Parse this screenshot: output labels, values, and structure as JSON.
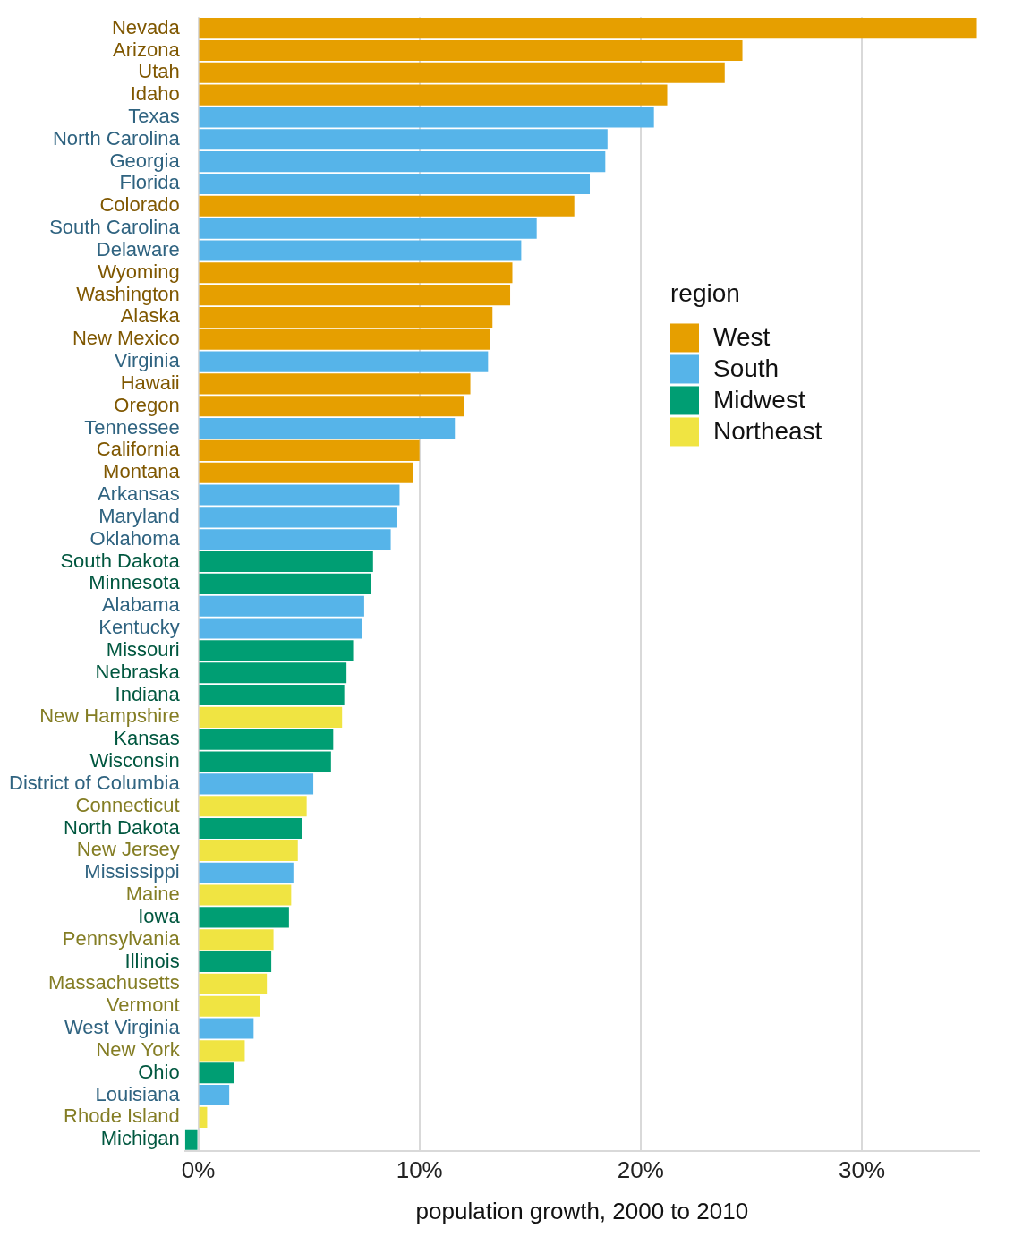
{
  "chart_data": {
    "type": "bar",
    "orientation": "horizontal",
    "x_label": "population growth, 2000 to 2010",
    "legend_title": "region",
    "legend": "right",
    "grid": true,
    "categories": [
      "Nevada",
      "Arizona",
      "Utah",
      "Idaho",
      "Texas",
      "North Carolina",
      "Georgia",
      "Florida",
      "Colorado",
      "South Carolina",
      "Delaware",
      "Wyoming",
      "Washington",
      "Alaska",
      "New Mexico",
      "Virginia",
      "Hawaii",
      "Oregon",
      "Tennessee",
      "California",
      "Montana",
      "Arkansas",
      "Maryland",
      "Oklahoma",
      "South Dakota",
      "Minnesota",
      "Alabama",
      "Kentucky",
      "Missouri",
      "Nebraska",
      "Indiana",
      "New Hampshire",
      "Kansas",
      "Wisconsin",
      "District of Columbia",
      "Connecticut",
      "North Dakota",
      "New Jersey",
      "Mississippi",
      "Maine",
      "Iowa",
      "Pennsylvania",
      "Illinois",
      "Massachusetts",
      "Vermont",
      "West Virginia",
      "New York",
      "Ohio",
      "Louisiana",
      "Rhode Island",
      "Michigan"
    ],
    "series": [
      {
        "name": "West",
        "color": "#E69F00",
        "values": [
          35.2,
          24.6,
          23.8,
          21.2,
          null,
          null,
          null,
          null,
          17.0,
          null,
          null,
          14.2,
          14.1,
          13.3,
          13.2,
          null,
          12.3,
          12.0,
          null,
          10.0,
          9.7,
          null,
          null,
          null,
          null,
          null,
          null,
          null,
          null,
          null,
          null,
          null,
          null,
          null,
          null,
          null,
          null,
          null,
          null,
          null,
          null,
          null,
          null,
          null,
          null,
          null,
          null,
          null,
          null,
          null,
          null
        ]
      },
      {
        "name": "South",
        "color": "#56B4E9",
        "values": [
          null,
          null,
          null,
          null,
          20.6,
          18.5,
          18.4,
          17.7,
          null,
          15.3,
          14.6,
          null,
          null,
          null,
          null,
          13.1,
          null,
          null,
          11.6,
          null,
          null,
          9.1,
          9.0,
          8.7,
          null,
          null,
          7.5,
          7.4,
          null,
          null,
          null,
          null,
          null,
          null,
          5.2,
          null,
          null,
          null,
          4.3,
          null,
          null,
          null,
          null,
          null,
          null,
          2.5,
          null,
          null,
          1.4,
          null,
          null
        ]
      },
      {
        "name": "Midwest",
        "color": "#009E73",
        "values": [
          null,
          null,
          null,
          null,
          null,
          null,
          null,
          null,
          null,
          null,
          null,
          null,
          null,
          null,
          null,
          null,
          null,
          null,
          null,
          null,
          null,
          null,
          null,
          null,
          7.9,
          7.8,
          null,
          null,
          7.0,
          6.7,
          6.6,
          null,
          6.1,
          6.0,
          null,
          null,
          4.7,
          null,
          null,
          null,
          4.1,
          null,
          3.3,
          null,
          null,
          null,
          null,
          1.6,
          null,
          null,
          -0.6
        ]
      },
      {
        "name": "Northeast",
        "color": "#F0E442",
        "values": [
          null,
          null,
          null,
          null,
          null,
          null,
          null,
          null,
          null,
          null,
          null,
          null,
          null,
          null,
          null,
          null,
          null,
          null,
          null,
          null,
          null,
          null,
          null,
          null,
          null,
          null,
          null,
          null,
          null,
          null,
          null,
          6.5,
          null,
          null,
          null,
          4.9,
          null,
          4.5,
          null,
          4.2,
          null,
          3.4,
          null,
          3.1,
          2.8,
          null,
          2.1,
          null,
          null,
          0.4,
          null
        ]
      }
    ],
    "xlim": [
      -0.6,
      35.3
    ],
    "xticks": [
      {
        "value": 0,
        "label": "0%"
      },
      {
        "value": 10,
        "label": "10%"
      },
      {
        "value": 20,
        "label": "20%"
      },
      {
        "value": 30,
        "label": "30%"
      }
    ]
  }
}
